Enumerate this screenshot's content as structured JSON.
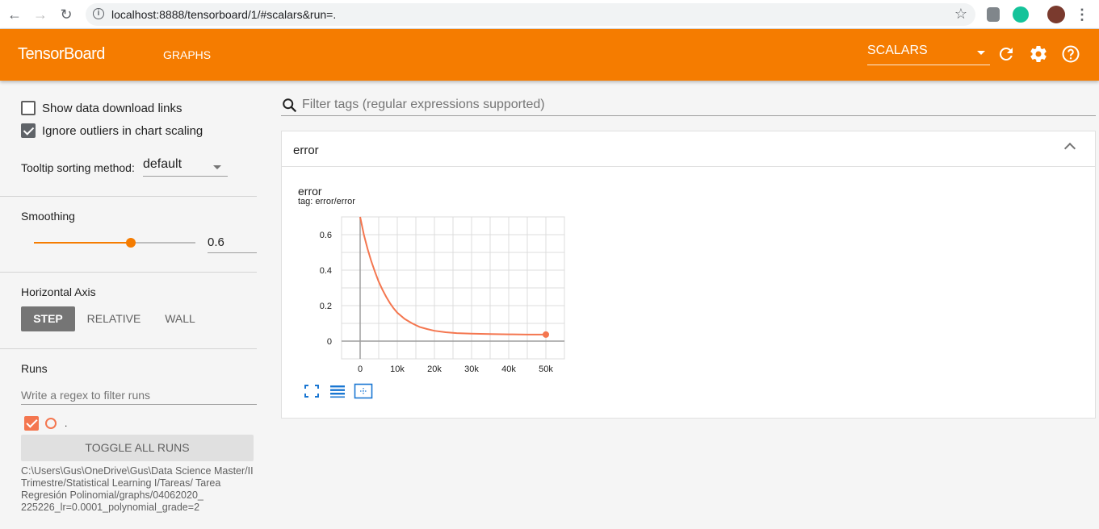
{
  "browser": {
    "url": "localhost:8888/tensorboard/1/#scalars&run=."
  },
  "header": {
    "title": "TensorBoard",
    "nav_graphs": "GRAPHS",
    "dashboard_select": "SCALARS"
  },
  "sidebar": {
    "show_download_links": {
      "label": "Show data download links",
      "checked": false
    },
    "ignore_outliers": {
      "label": "Ignore outliers in chart scaling",
      "checked": true
    },
    "tooltip_sorting": {
      "label": "Tooltip sorting method:",
      "value": "default"
    },
    "smoothing": {
      "label": "Smoothing",
      "value": "0.6",
      "fraction": 0.6
    },
    "horizontal_axis": {
      "label": "Horizontal Axis",
      "options": [
        "STEP",
        "RELATIVE",
        "WALL"
      ],
      "selected": "STEP"
    },
    "runs": {
      "label": "Runs",
      "filter_placeholder": "Write a regex to filter runs",
      "run_name": ".",
      "toggle_all_label": "TOGGLE ALL RUNS",
      "logdir_path": "C:\\Users\\Gus\\OneDrive\\Gus\\Data Science Master/II Trimestre/Statistical Learning I/Tareas/ Tarea Regresión Polinomial/graphs/04062020_ 225226_lr=0.0001_polynomial_grade=2"
    }
  },
  "main": {
    "filter_placeholder": "Filter tags (regular expressions supported)",
    "card": {
      "title": "error",
      "chart_title": "error",
      "chart_tag": "tag: error/error"
    }
  },
  "colors": {
    "brand_orange": "#f57c00",
    "series_color": "#f4764f",
    "icon_blue": "#1976d2"
  },
  "chart_data": {
    "type": "line",
    "title": "error",
    "subtitle": "tag: error/error",
    "xlabel": "",
    "ylabel": "",
    "xlim": [
      -5000,
      55000
    ],
    "ylim": [
      -0.1,
      0.7
    ],
    "x_ticks": [
      0,
      10000,
      20000,
      30000,
      40000,
      50000
    ],
    "x_tick_labels": [
      "0",
      "10k",
      "20k",
      "30k",
      "40k",
      "50k"
    ],
    "y_ticks": [
      0,
      0.2,
      0.4,
      0.6
    ],
    "y_tick_labels": [
      "0",
      "0.2",
      "0.4",
      "0.6"
    ],
    "grid": true,
    "series": [
      {
        "color": "#f4764f",
        "x": [
          0,
          1000,
          2000,
          3000,
          4000,
          5000,
          6000,
          7000,
          8000,
          9000,
          10000,
          12000,
          14000,
          16000,
          18000,
          20000,
          23000,
          26000,
          30000,
          35000,
          40000,
          45000,
          50000
        ],
        "y": [
          0.7,
          0.6,
          0.52,
          0.45,
          0.39,
          0.335,
          0.29,
          0.25,
          0.215,
          0.185,
          0.16,
          0.125,
          0.1,
          0.08,
          0.068,
          0.058,
          0.05,
          0.045,
          0.042,
          0.04,
          0.038,
          0.037,
          0.037
        ]
      }
    ]
  }
}
